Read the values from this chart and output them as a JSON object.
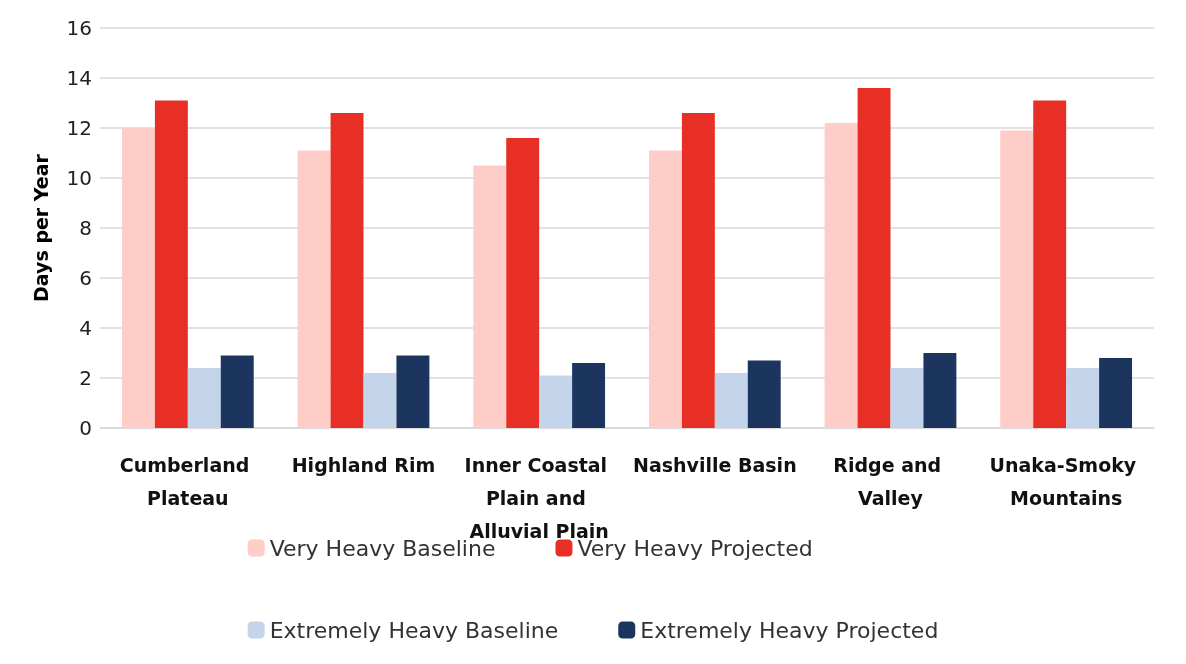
{
  "chart_data": {
    "type": "bar",
    "ylabel": "Days per Year",
    "categories": [
      "Cumberland Plateau",
      "Highland Rim",
      "Inner Coastal Plain and Alluvial Plain",
      "Nashville Basin",
      "Ridge and Valley",
      "Unaka-Smoky Mountains"
    ],
    "series": [
      {
        "name": "Very Heavy Baseline",
        "color": "#ffcdc8",
        "values": [
          12.0,
          11.1,
          10.5,
          11.1,
          12.2,
          11.9
        ]
      },
      {
        "name": "Very Heavy Projected",
        "color": "#e82f25",
        "values": [
          13.1,
          12.6,
          11.6,
          12.6,
          13.6,
          13.1
        ]
      },
      {
        "name": "Extremely Heavy Baseline",
        "color": "#c4d5eb",
        "values": [
          2.4,
          2.2,
          2.1,
          2.2,
          2.4,
          2.4
        ]
      },
      {
        "name": "Extremely Heavy Projected",
        "color": "#1c355e",
        "values": [
          2.9,
          2.9,
          2.6,
          2.7,
          3.0,
          2.8
        ]
      }
    ],
    "ylim": [
      0,
      16
    ],
    "yticks": [
      0,
      2,
      4,
      6,
      8,
      10,
      12,
      14,
      16
    ],
    "grid": "y",
    "legend": "bottom"
  }
}
